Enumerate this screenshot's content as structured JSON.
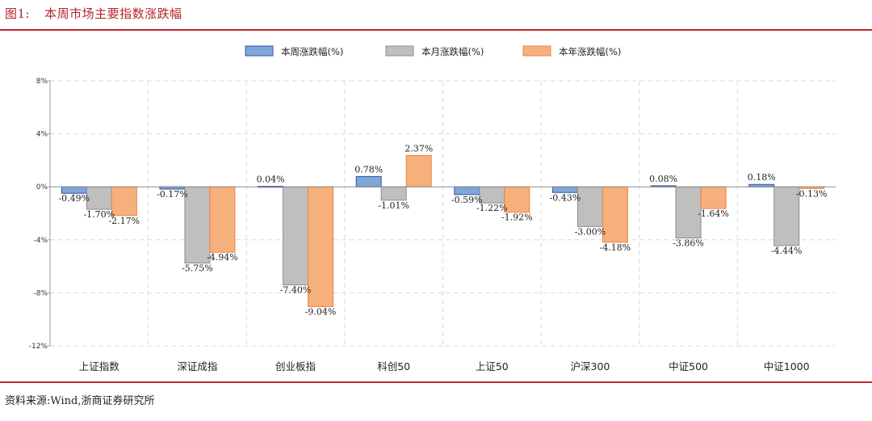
{
  "figure": {
    "number": "图1:",
    "title": "本周市场主要指数涨跌幅",
    "source": "资料来源:Wind,浙商证券研究所"
  },
  "colors": {
    "rule": "#c0272d",
    "title": "#b3262a",
    "weekly_fill": "#7ea6d6",
    "weekly_stroke": "#3457a8",
    "monthly_fill": "#bfbfbf",
    "monthly_stroke": "#8c8c8c",
    "yearly_fill": "#f6b07c",
    "yearly_stroke": "#ec8446"
  },
  "chart_data": {
    "type": "bar",
    "title": "本周市场主要指数涨跌幅",
    "categories": [
      "上证指数",
      "深证成指",
      "创业板指",
      "科创50",
      "上证50",
      "沪深300",
      "中证500",
      "中证1000"
    ],
    "series": [
      {
        "name": "本周涨跌幅(%)",
        "values": [
          -0.49,
          -0.17,
          0.04,
          0.78,
          -0.59,
          -0.43,
          0.08,
          0.18
        ],
        "labels": [
          "-0.49%",
          "-0.17%",
          "0.04%",
          "0.78%",
          "-0.59%",
          "-0.43%",
          "0.08%",
          "0.18%"
        ]
      },
      {
        "name": "本月涨跌幅(%)",
        "values": [
          -1.7,
          -5.75,
          -7.4,
          -1.01,
          -1.22,
          -3.0,
          -3.86,
          -4.44
        ],
        "labels": [
          "-1.70%",
          "-5.75%",
          "-7.40%",
          "-1.01%",
          "-1.22%",
          "-3.00%",
          "-3.86%",
          "-4.44%"
        ]
      },
      {
        "name": "本年涨跌幅(%)",
        "values": [
          -2.17,
          -4.94,
          -9.04,
          2.37,
          -1.92,
          -4.18,
          -1.64,
          -0.13
        ],
        "labels": [
          "-2.17%",
          "-4.94%",
          "-9.04%",
          "2.37%",
          "-1.92%",
          "-4.18%",
          "-1.64%",
          "-0.13%"
        ]
      }
    ],
    "yticks": [
      8,
      4,
      0,
      -4,
      -8,
      -12
    ],
    "ytick_labels": [
      "8%",
      "4%",
      "0%",
      "-4%",
      "-8%",
      "-12%"
    ],
    "ylim": [
      -12,
      8
    ],
    "grid": true,
    "legend_position": "top-center",
    "xlabel": "",
    "ylabel": ""
  }
}
